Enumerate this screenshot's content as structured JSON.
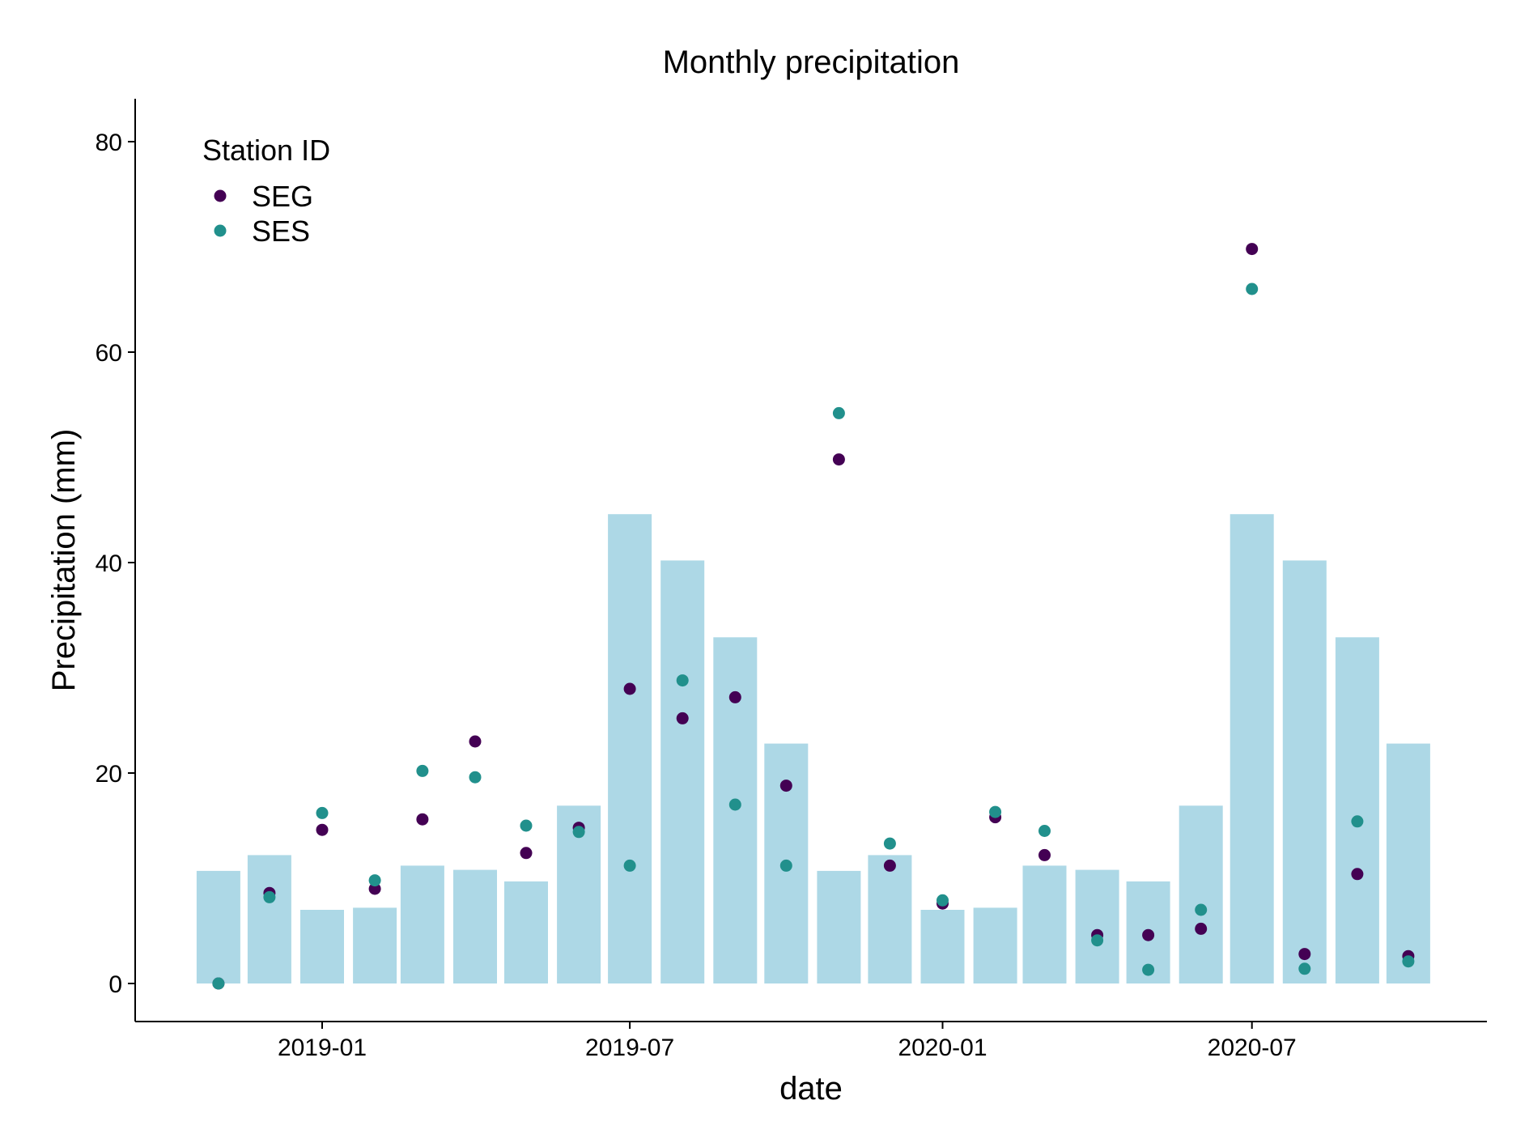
{
  "colors": {
    "bars": "#add8e6",
    "SEG": "#440154",
    "SES": "#21908c",
    "axis": "#000000"
  },
  "chart_data": {
    "type": "bar",
    "title": "Monthly precipitation",
    "xlabel": "date",
    "ylabel": "Precipitation (mm)",
    "ylim": [
      0,
      80
    ],
    "yticks": [
      "0",
      "20",
      "40",
      "60",
      "80"
    ],
    "xticks": [
      {
        "date": "2019-01-01",
        "label": "2019-01"
      },
      {
        "date": "2019-07-01",
        "label": "2019-07"
      },
      {
        "date": "2020-01-01",
        "label": "2020-01"
      },
      {
        "date": "2020-07-01",
        "label": "2020-07"
      }
    ],
    "grid": false,
    "legend": {
      "title": "Station ID",
      "position": "top-left"
    },
    "bars": {
      "dates": [
        "2018-11-01",
        "2018-12-01",
        "2019-01-01",
        "2019-02-01",
        "2019-03-01",
        "2019-04-01",
        "2019-05-01",
        "2019-06-01",
        "2019-07-01",
        "2019-08-01",
        "2019-09-01",
        "2019-10-01",
        "2019-11-01",
        "2019-12-01",
        "2020-01-01",
        "2020-02-01",
        "2020-03-01",
        "2020-04-01",
        "2020-05-01",
        "2020-06-01",
        "2020-07-01",
        "2020-08-01",
        "2020-09-01",
        "2020-10-01"
      ],
      "values": [
        10.7,
        12.2,
        7.0,
        7.2,
        11.2,
        10.8,
        9.7,
        16.9,
        44.6,
        40.2,
        32.9,
        22.8,
        10.7,
        12.2,
        7.0,
        7.2,
        11.2,
        10.8,
        9.7,
        16.9,
        44.6,
        40.2,
        32.9,
        22.8
      ]
    },
    "series": [
      {
        "name": "SEG",
        "dates": [
          "2018-11-01",
          "2018-12-01",
          "2019-01-01",
          "2019-02-01",
          "2019-03-01",
          "2019-04-01",
          "2019-05-01",
          "2019-06-01",
          "2019-07-01",
          "2019-08-01",
          "2019-09-01",
          "2019-10-01",
          "2019-11-01",
          "2019-12-01",
          "2020-01-01",
          "2020-02-01",
          "2020-03-01",
          "2020-04-01",
          "2020-05-01",
          "2020-06-01",
          "2020-07-01",
          "2020-08-01",
          "2020-09-01",
          "2020-10-01"
        ],
        "values": [
          0.0,
          8.6,
          14.6,
          9.0,
          15.6,
          23.0,
          12.4,
          14.8,
          28.0,
          25.2,
          27.2,
          18.8,
          49.8,
          11.2,
          7.6,
          15.8,
          12.2,
          4.6,
          4.6,
          5.2,
          69.8,
          2.8,
          10.4,
          2.6
        ]
      },
      {
        "name": "SES",
        "dates": [
          "2018-11-01",
          "2018-12-01",
          "2019-01-01",
          "2019-02-01",
          "2019-03-01",
          "2019-04-01",
          "2019-05-01",
          "2019-06-01",
          "2019-07-01",
          "2019-08-01",
          "2019-09-01",
          "2019-10-01",
          "2019-11-01",
          "2019-12-01",
          "2020-01-01",
          "2020-02-01",
          "2020-03-01",
          "2020-04-01",
          "2020-05-01",
          "2020-06-01",
          "2020-07-01",
          "2020-08-01",
          "2020-09-01",
          "2020-10-01"
        ],
        "values": [
          0.0,
          8.2,
          16.2,
          9.8,
          20.2,
          19.6,
          15.0,
          14.4,
          11.2,
          28.8,
          17.0,
          11.2,
          54.2,
          13.3,
          7.9,
          16.3,
          14.5,
          4.1,
          1.3,
          7.0,
          66.0,
          1.4,
          15.4,
          2.1
        ]
      }
    ]
  }
}
